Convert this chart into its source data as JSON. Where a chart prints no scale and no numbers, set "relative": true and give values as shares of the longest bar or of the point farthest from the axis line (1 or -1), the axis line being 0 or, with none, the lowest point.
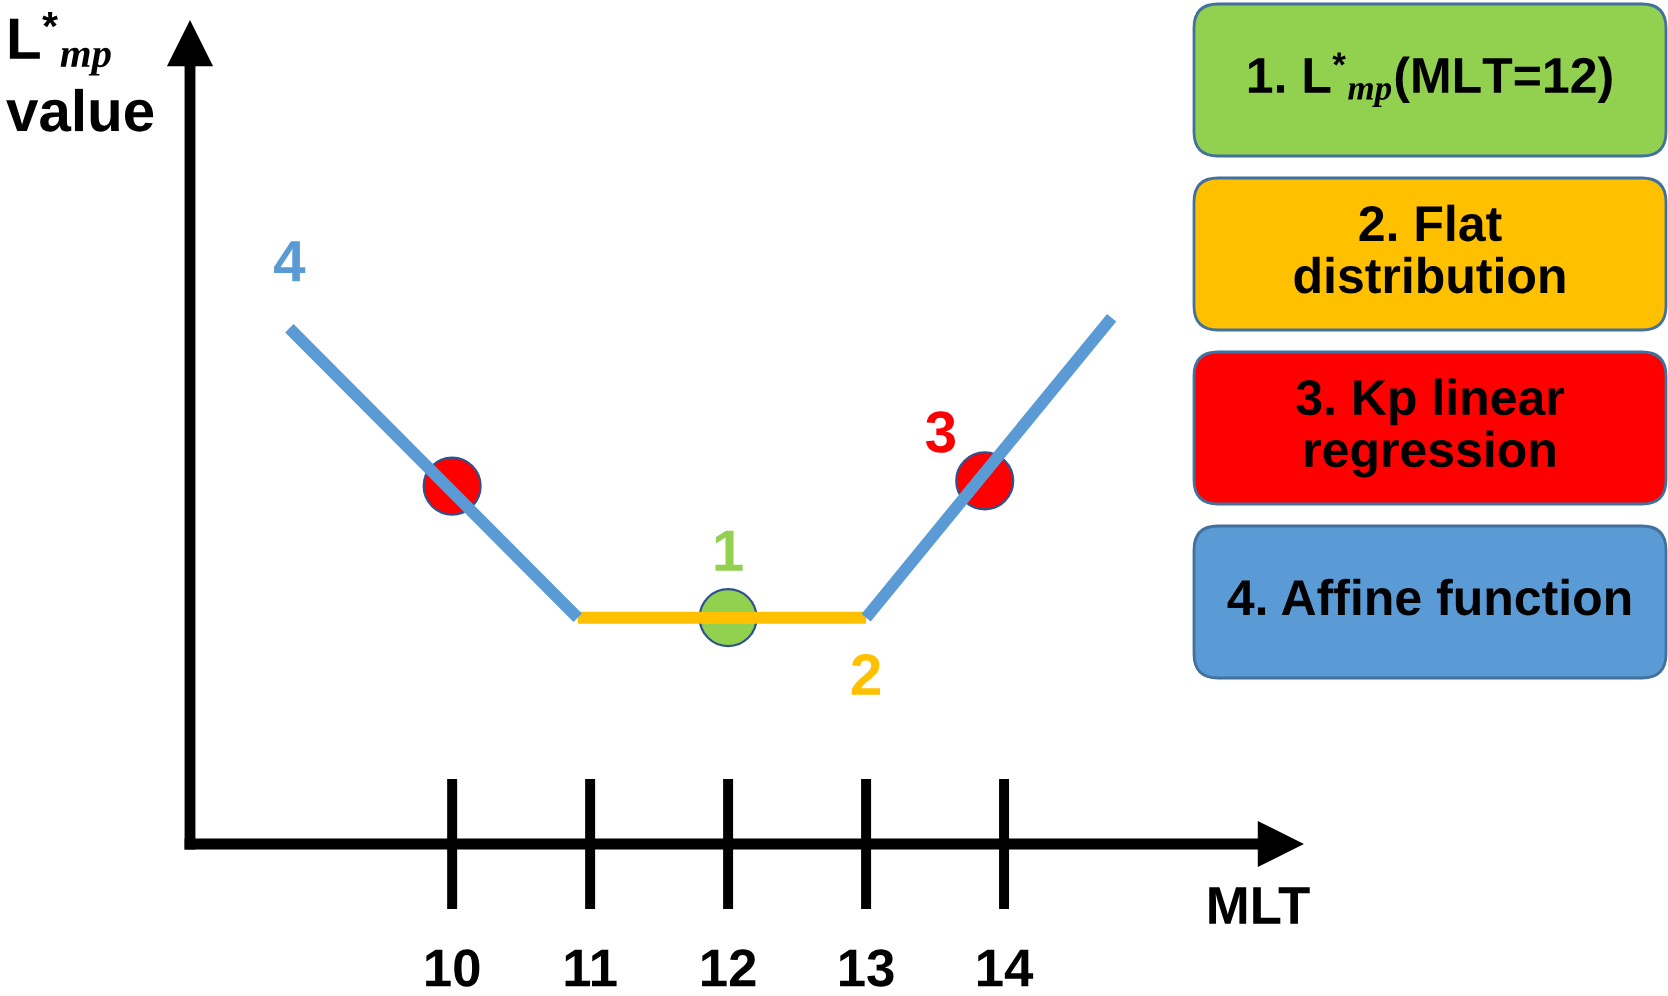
{
  "chart_data": {
    "type": "line",
    "xlabel": "MLT",
    "ylabel": "L$^{*}$$_{mp}$ value",
    "relative": true,
    "xlim": [
      8.1,
      16
    ],
    "xticks": [
      10,
      11,
      12,
      13,
      14
    ],
    "tick_labels": "x",
    "legend": "right",
    "series": [
      {
        "name": "1. L$^{*}$$_{mp}$(MLT=12)",
        "type": "scatter",
        "marker": "circle",
        "color": "#92d050",
        "x": [
          12
        ],
        "values": [
          0.43
        ]
      },
      {
        "name": "2. Flat distribution",
        "color": "#ffc000",
        "x": [
          10.91,
          13
        ],
        "values": [
          0.43,
          0.43
        ]
      },
      {
        "name": "3. Kp linear regression",
        "type": "scatter",
        "marker": "circle",
        "color": "#ff0000",
        "x": [
          10,
          13.86
        ],
        "values": [
          0.68,
          0.69
        ]
      },
      {
        "name": "4. Affine function",
        "color": "#5b9bd5",
        "x": [
          8.82,
          10.91,
          12,
          13,
          14.78
        ],
        "values": [
          0.98,
          0.43,
          null,
          0.43,
          1
        ]
      }
    ],
    "annotations": [
      {
        "text": "4",
        "x": 8.82,
        "y": 0.98
      },
      {
        "text": "1",
        "x": 12,
        "y": 0.43
      },
      {
        "text": "2",
        "x": 13,
        "y": 0.43
      },
      {
        "text": "3",
        "x": 13.86,
        "y": 0.69
      }
    ]
  }
}
